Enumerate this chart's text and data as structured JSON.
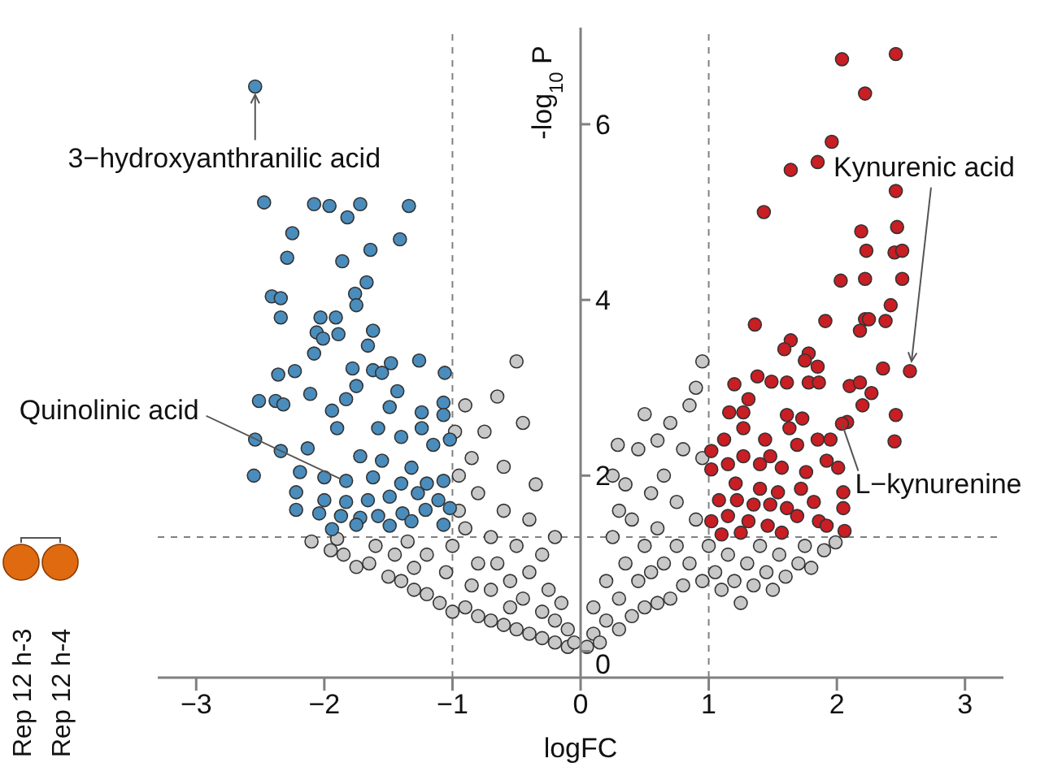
{
  "chart_data": {
    "type": "scatter",
    "xlabel": "logFC",
    "ylabel": "-log$_{10}$ P",
    "xlim": [
      -3.3,
      3.3
    ],
    "ylim": [
      -0.3,
      7.1
    ],
    "xticks": [
      {
        "value": -3,
        "label": "−3"
      },
      {
        "value": -2,
        "label": "−2"
      },
      {
        "value": -1,
        "label": "−1"
      },
      0,
      1,
      2,
      3
    ],
    "yticks": [
      0,
      2,
      4,
      6
    ],
    "marker": "circle",
    "ref_lines": [
      {
        "axis": "x",
        "value": -1,
        "color": "#808080",
        "line_style": "dashed"
      },
      {
        "axis": "x",
        "value": 1,
        "color": "#808080",
        "line_style": "dashed"
      },
      {
        "axis": "y",
        "value": 1.3,
        "color": "#808080",
        "line_style": "dashed"
      }
    ],
    "annotations": [
      {
        "text": "3−hydroxyanthranilic acid",
        "x": -2.54,
        "y": 6.43
      },
      {
        "text": "Kynurenic acid",
        "x": 2.57,
        "y": 3.19
      },
      {
        "text": "Quinolinic acid",
        "x": -1.83,
        "y": 1.94
      },
      {
        "text": "L−kynurenine",
        "x": 2.04,
        "y": 2.59
      },
      "Rep 12 h-3",
      "Rep 12 h-4"
    ],
    "series": [
      {
        "color": "#c8c8c8",
        "x": [
          -2.1,
          -1.95,
          -1.85,
          -1.75,
          -1.9,
          -1.65,
          -1.6,
          -1.5,
          -1.45,
          -1.4,
          -1.3,
          -1.3,
          -1.2,
          -1.2,
          -1.1,
          -1.05,
          -1.0,
          -1.0,
          -0.95,
          -0.95,
          -0.9,
          -0.9,
          -0.85,
          -0.85,
          -0.8,
          -0.8,
          -0.8,
          -0.75,
          -0.7,
          -0.7,
          -0.7,
          -0.65,
          -0.6,
          -0.6,
          -0.6,
          -0.55,
          -0.55,
          -0.5,
          -0.5,
          -0.5,
          -0.45,
          -0.45,
          -0.4,
          -0.4,
          -0.4,
          -0.35,
          -0.3,
          -0.3,
          -0.3,
          -0.25,
          -0.2,
          -0.2,
          -0.2,
          -0.15,
          -0.1,
          -0.1,
          -0.05,
          -0.9,
          -0.98,
          -0.65,
          -1.35,
          0.05,
          0.1,
          0.1,
          0.15,
          0.2,
          0.2,
          0.25,
          0.3,
          0.3,
          0.35,
          0.35,
          0.4,
          0.4,
          0.45,
          0.45,
          0.5,
          0.5,
          0.5,
          0.55,
          0.55,
          0.6,
          0.6,
          0.65,
          0.65,
          0.7,
          0.7,
          0.75,
          0.75,
          0.8,
          0.8,
          0.85,
          0.85,
          0.9,
          0.9,
          0.95,
          0.95,
          0.95,
          1.0,
          1.05,
          1.1,
          1.15,
          1.2,
          1.25,
          1.3,
          1.35,
          1.4,
          1.45,
          1.5,
          1.55,
          1.6,
          1.7,
          1.75,
          1.8,
          1.9,
          1.99,
          0.25,
          0.6,
          0.3,
          0.29
        ],
        "values": [
          1.25,
          1.15,
          1.1,
          0.96,
          1.28,
          1.0,
          1.2,
          0.85,
          1.1,
          0.8,
          0.95,
          0.7,
          0.65,
          1.1,
          0.55,
          0.9,
          0.45,
          1.2,
          1.6,
          2.0,
          0.5,
          1.4,
          0.75,
          2.2,
          0.4,
          1.0,
          1.8,
          2.5,
          0.35,
          0.7,
          1.3,
          1.0,
          0.3,
          1.6,
          2.1,
          0.5,
          0.8,
          3.3,
          1.2,
          0.25,
          2.6,
          0.6,
          0.2,
          0.9,
          1.5,
          1.9,
          0.15,
          0.45,
          1.1,
          0.7,
          0.1,
          0.35,
          1.3,
          0.55,
          0.05,
          0.25,
          0.1,
          2.8,
          2.5,
          2.9,
          1.25,
          0.05,
          0.2,
          0.5,
          0.1,
          0.35,
          0.8,
          1.3,
          0.25,
          0.6,
          1.0,
          1.9,
          0.4,
          1.5,
          0.8,
          2.3,
          0.5,
          1.2,
          2.7,
          0.9,
          1.8,
          0.55,
          1.4,
          2.0,
          1.0,
          0.6,
          2.6,
          1.2,
          1.7,
          0.75,
          2.3,
          1.0,
          2.8,
          1.5,
          3.0,
          0.8,
          2.2,
          3.3,
          1.2,
          0.9,
          0.7,
          1.1,
          0.8,
          0.55,
          1.0,
          0.75,
          1.2,
          0.9,
          0.7,
          1.1,
          0.85,
          1.0,
          1.2,
          0.95,
          1.15,
          1.24,
          2.0,
          2.4,
          1.6,
          2.35
        ]
      },
      {
        "color": "#4a8dbd",
        "x": [
          -2.54,
          -2.47,
          -2.08,
          -1.96,
          -1.82,
          -1.72,
          -1.34,
          -2.25,
          -1.41,
          -2.29,
          -1.86,
          -1.64,
          -1.67,
          -2.41,
          -2.34,
          -1.76,
          -1.75,
          -2.34,
          -2.03,
          -1.91,
          -2.06,
          -2.01,
          -1.89,
          -1.62,
          -1.66,
          -2.08,
          -2.36,
          -2.23,
          -1.78,
          -1.62,
          -1.48,
          -1.26,
          -1.06,
          -1.55,
          -2.51,
          -2.38,
          -2.32,
          -2.11,
          -1.94,
          -1.83,
          -1.75,
          -1.43,
          -1.49,
          -1.24,
          -1.07,
          -1.07,
          -2.54,
          -2.34,
          -2.13,
          -1.9,
          -1.58,
          -1.4,
          -1.24,
          -1.15,
          -1.02,
          -1.72,
          -1.55,
          -1.32,
          -2.55,
          -2.19,
          -2.0,
          -1.83,
          -1.62,
          -1.4,
          -1.2,
          -1.07,
          -2.22,
          -2.0,
          -1.83,
          -1.66,
          -1.49,
          -1.27,
          -1.11,
          -2.22,
          -2.04,
          -1.87,
          -1.72,
          -1.58,
          -1.39,
          -1.21,
          -1.02,
          -1.94,
          -1.75,
          -1.49,
          -1.32,
          -1.07
        ],
        "values": [
          6.43,
          5.11,
          5.09,
          5.07,
          4.94,
          5.09,
          5.07,
          4.76,
          4.69,
          4.48,
          4.44,
          4.57,
          4.2,
          4.04,
          4.02,
          4.07,
          3.94,
          3.8,
          3.8,
          3.8,
          3.63,
          3.56,
          3.61,
          3.65,
          3.48,
          3.39,
          3.15,
          3.19,
          3.22,
          3.2,
          3.28,
          3.31,
          3.17,
          3.17,
          2.85,
          2.85,
          2.81,
          2.93,
          2.74,
          2.87,
          3.02,
          2.96,
          2.78,
          2.72,
          2.83,
          2.69,
          2.41,
          2.28,
          2.31,
          2.54,
          2.54,
          2.44,
          2.54,
          2.35,
          2.41,
          2.22,
          2.17,
          2.09,
          2.0,
          2.04,
          1.98,
          1.94,
          1.98,
          1.91,
          1.91,
          1.94,
          1.81,
          1.72,
          1.7,
          1.72,
          1.76,
          1.8,
          1.72,
          1.61,
          1.57,
          1.54,
          1.52,
          1.54,
          1.57,
          1.61,
          1.63,
          1.39,
          1.44,
          1.43,
          1.48,
          1.44
        ]
      },
      {
        "color": "#c81e24",
        "x": [
          2.04,
          2.46,
          2.22,
          1.96,
          1.85,
          1.64,
          2.46,
          1.43,
          2.19,
          2.47,
          2.23,
          2.45,
          2.51,
          2.03,
          2.22,
          2.51,
          2.42,
          2.22,
          2.25,
          2.38,
          1.91,
          1.36,
          2.18,
          1.64,
          1.59,
          1.78,
          1.75,
          1.85,
          2.36,
          2.57,
          1.38,
          1.49,
          1.61,
          1.78,
          1.86,
          1.2,
          2.1,
          2.18,
          2.27,
          2.2,
          2.46,
          1.16,
          1.31,
          1.27,
          1.61,
          1.73,
          2.08,
          2.04,
          2.45,
          1.12,
          1.27,
          1.44,
          1.63,
          1.69,
          1.85,
          1.95,
          1.02,
          1.15,
          1.27,
          1.4,
          1.48,
          1.57,
          1.76,
          1.92,
          2.01,
          1.02,
          1.21,
          1.4,
          1.54,
          1.72,
          2.05,
          1.08,
          1.22,
          1.35,
          1.48,
          1.61,
          1.82,
          2.05,
          1.02,
          1.15,
          1.31,
          1.46,
          1.69,
          1.86,
          1.92,
          1.25,
          1.57,
          2.06,
          1.1
        ],
        "values": [
          6.74,
          6.8,
          6.35,
          5.8,
          5.57,
          5.48,
          5.24,
          5.0,
          4.78,
          4.83,
          4.56,
          4.54,
          4.56,
          4.22,
          4.24,
          4.24,
          3.94,
          3.78,
          3.78,
          3.76,
          3.76,
          3.72,
          3.65,
          3.54,
          3.44,
          3.39,
          3.31,
          3.24,
          3.22,
          3.19,
          3.13,
          3.07,
          3.06,
          3.06,
          3.06,
          3.04,
          3.02,
          3.06,
          2.94,
          2.8,
          2.69,
          2.72,
          2.87,
          2.72,
          2.69,
          2.65,
          2.61,
          2.59,
          2.39,
          2.41,
          2.54,
          2.41,
          2.54,
          2.35,
          2.41,
          2.41,
          2.28,
          2.13,
          2.22,
          2.13,
          2.22,
          2.09,
          2.04,
          2.17,
          2.09,
          2.07,
          1.91,
          1.85,
          1.81,
          1.85,
          1.81,
          1.72,
          1.72,
          1.67,
          1.67,
          1.63,
          1.7,
          1.63,
          1.48,
          1.54,
          1.48,
          1.43,
          1.54,
          1.48,
          1.43,
          1.35,
          1.35,
          1.37,
          1.33
        ]
      }
    ]
  }
}
